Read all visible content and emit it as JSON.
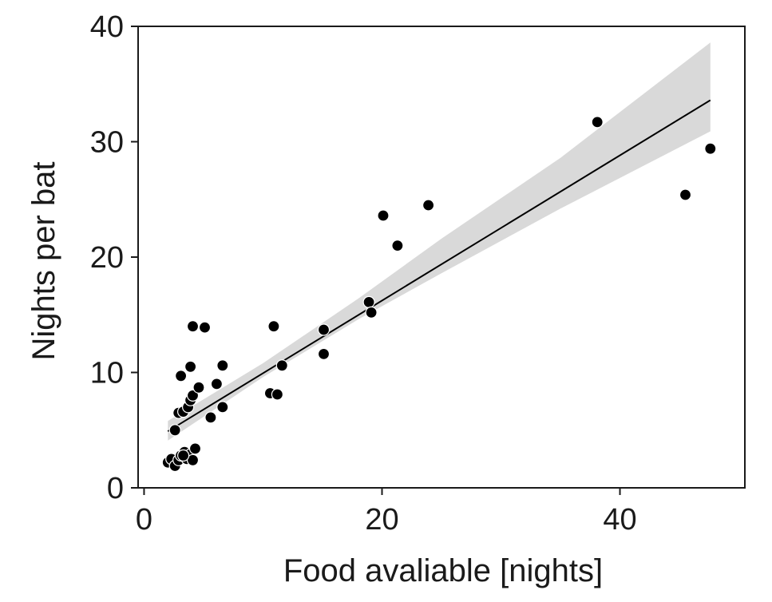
{
  "chart_data": {
    "type": "scatter",
    "title": "",
    "xlabel": "Food avaliable [nights]",
    "ylabel": "Nights per bat",
    "xlim": [
      -0.5,
      50.5
    ],
    "ylim": [
      0,
      40
    ],
    "xticks": [
      0,
      20,
      40
    ],
    "yticks": [
      0,
      10,
      20,
      30,
      40
    ],
    "xtick_labels": [
      "0",
      "20",
      "40"
    ],
    "ytick_labels": [
      "0",
      "10",
      "20",
      "30",
      "40"
    ],
    "grid": false,
    "points": [
      {
        "x": 2.0,
        "y": 2.2
      },
      {
        "x": 2.3,
        "y": 2.5
      },
      {
        "x": 2.6,
        "y": 1.9
      },
      {
        "x": 2.9,
        "y": 2.4
      },
      {
        "x": 3.1,
        "y": 2.8
      },
      {
        "x": 3.4,
        "y": 3.1
      },
      {
        "x": 3.6,
        "y": 2.5
      },
      {
        "x": 3.9,
        "y": 2.9
      },
      {
        "x": 4.1,
        "y": 2.4
      },
      {
        "x": 4.3,
        "y": 3.4
      },
      {
        "x": 3.3,
        "y": 2.8
      },
      {
        "x": 2.6,
        "y": 5.0
      },
      {
        "x": 2.9,
        "y": 6.5
      },
      {
        "x": 3.3,
        "y": 6.6
      },
      {
        "x": 3.7,
        "y": 7.0
      },
      {
        "x": 3.9,
        "y": 7.6
      },
      {
        "x": 4.1,
        "y": 8.0
      },
      {
        "x": 4.6,
        "y": 8.7
      },
      {
        "x": 3.1,
        "y": 9.7
      },
      {
        "x": 3.9,
        "y": 10.5
      },
      {
        "x": 4.1,
        "y": 14.0
      },
      {
        "x": 5.1,
        "y": 13.9
      },
      {
        "x": 5.6,
        "y": 6.1
      },
      {
        "x": 6.1,
        "y": 9.0
      },
      {
        "x": 6.6,
        "y": 7.0
      },
      {
        "x": 6.6,
        "y": 10.6
      },
      {
        "x": 10.6,
        "y": 8.2
      },
      {
        "x": 10.9,
        "y": 14.0
      },
      {
        "x": 11.2,
        "y": 8.1
      },
      {
        "x": 11.6,
        "y": 10.6
      },
      {
        "x": 15.1,
        "y": 11.6
      },
      {
        "x": 15.1,
        "y": 13.7
      },
      {
        "x": 18.9,
        "y": 16.1
      },
      {
        "x": 19.1,
        "y": 15.2
      },
      {
        "x": 20.1,
        "y": 23.6
      },
      {
        "x": 21.3,
        "y": 21.0
      },
      {
        "x": 23.9,
        "y": 24.5
      },
      {
        "x": 38.1,
        "y": 31.7
      },
      {
        "x": 45.5,
        "y": 25.4
      },
      {
        "x": 47.6,
        "y": 29.4
      }
    ],
    "fit_line": {
      "x": [
        2.0,
        47.6
      ],
      "y": [
        4.9,
        33.6
      ]
    },
    "confidence_band": {
      "x": [
        2.0,
        10.0,
        18.0,
        25.0,
        35.0,
        47.6
      ],
      "lower": [
        4.1,
        9.6,
        14.6,
        18.6,
        24.2,
        30.9
      ],
      "upper": [
        5.8,
        10.8,
        16.4,
        21.6,
        28.6,
        38.6
      ]
    },
    "colors": {
      "points": "#000000",
      "point_edge": "#ffffff",
      "fit_line": "#000000",
      "band": "#d9d9d9",
      "axes": "#1a1a1a"
    }
  }
}
